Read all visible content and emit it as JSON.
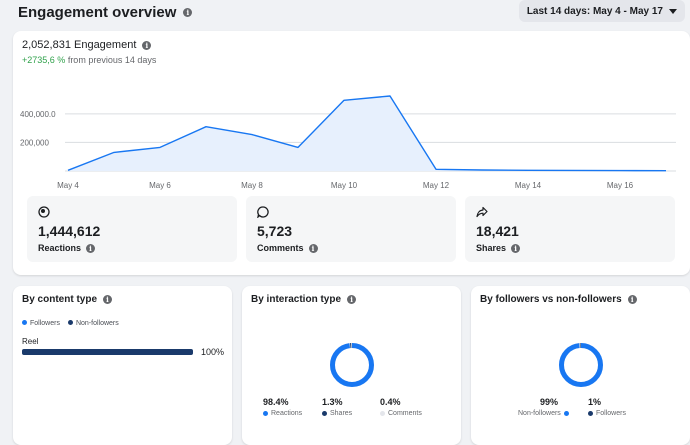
{
  "header": {
    "title": "Engagement overview",
    "date_range": "Last 14 days: May 4 - May 17"
  },
  "engagement": {
    "total": "2,052,831 Engagement",
    "delta_pct": "+2735,6 %",
    "delta_text": "from previous 14 days"
  },
  "chart_data": {
    "type": "area",
    "x": [
      "May 4",
      "May 5",
      "May 6",
      "May 7",
      "May 8",
      "May 9",
      "May 10",
      "May 11",
      "May 12",
      "May 13",
      "May 14",
      "May 15",
      "May 16",
      "May 17"
    ],
    "y": [
      5000,
      130000,
      165000,
      310000,
      255000,
      165000,
      495000,
      525000,
      12000,
      7000,
      5000,
      4000,
      3000,
      2000
    ],
    "x_tick_labels": [
      "May 4",
      "May 6",
      "May 8",
      "May 10",
      "May 12",
      "May 14",
      "May 16"
    ],
    "y_tick_labels": [
      "400,000.0",
      "200,000"
    ],
    "y_ticks": [
      400000,
      200000
    ],
    "ylim": [
      0,
      560000
    ],
    "grid": true,
    "colors": {
      "line": "#1877f2",
      "fill": "#e7f0fd"
    }
  },
  "metrics": [
    {
      "icon": "reactions-icon",
      "value": "1,444,612",
      "label": "Reactions"
    },
    {
      "icon": "comment-icon",
      "value": "5,723",
      "label": "Comments"
    },
    {
      "icon": "share-icon",
      "value": "18,421",
      "label": "Shares"
    }
  ],
  "content_type": {
    "title": "By content type",
    "legend": [
      "Followers",
      "Non-followers"
    ],
    "bar_label": "Reel",
    "bar_pct": "100%",
    "bar_value": 1.0
  },
  "interaction_type": {
    "title": "By interaction type",
    "stats": [
      {
        "value": "98.4%",
        "label": "Reactions",
        "color": "#1877f2",
        "fraction": 0.984
      },
      {
        "value": "1.3%",
        "label": "Shares",
        "color": "#1a3a6b",
        "fraction": 0.013
      },
      {
        "value": "0.4%",
        "label": "Comments",
        "color": "#e4e6eb",
        "fraction": 0.004
      }
    ]
  },
  "followers": {
    "title": "By followers vs non-followers",
    "stats": [
      {
        "value": "99%",
        "label": "Non-followers",
        "color": "#1877f2",
        "fraction": 0.99
      },
      {
        "value": "1%",
        "label": "Followers",
        "color": "#1a3a6b",
        "fraction": 0.01
      }
    ]
  },
  "colors": {
    "accent": "#1877f2",
    "dark": "#1a3a6b",
    "positive": "#31a24c"
  }
}
